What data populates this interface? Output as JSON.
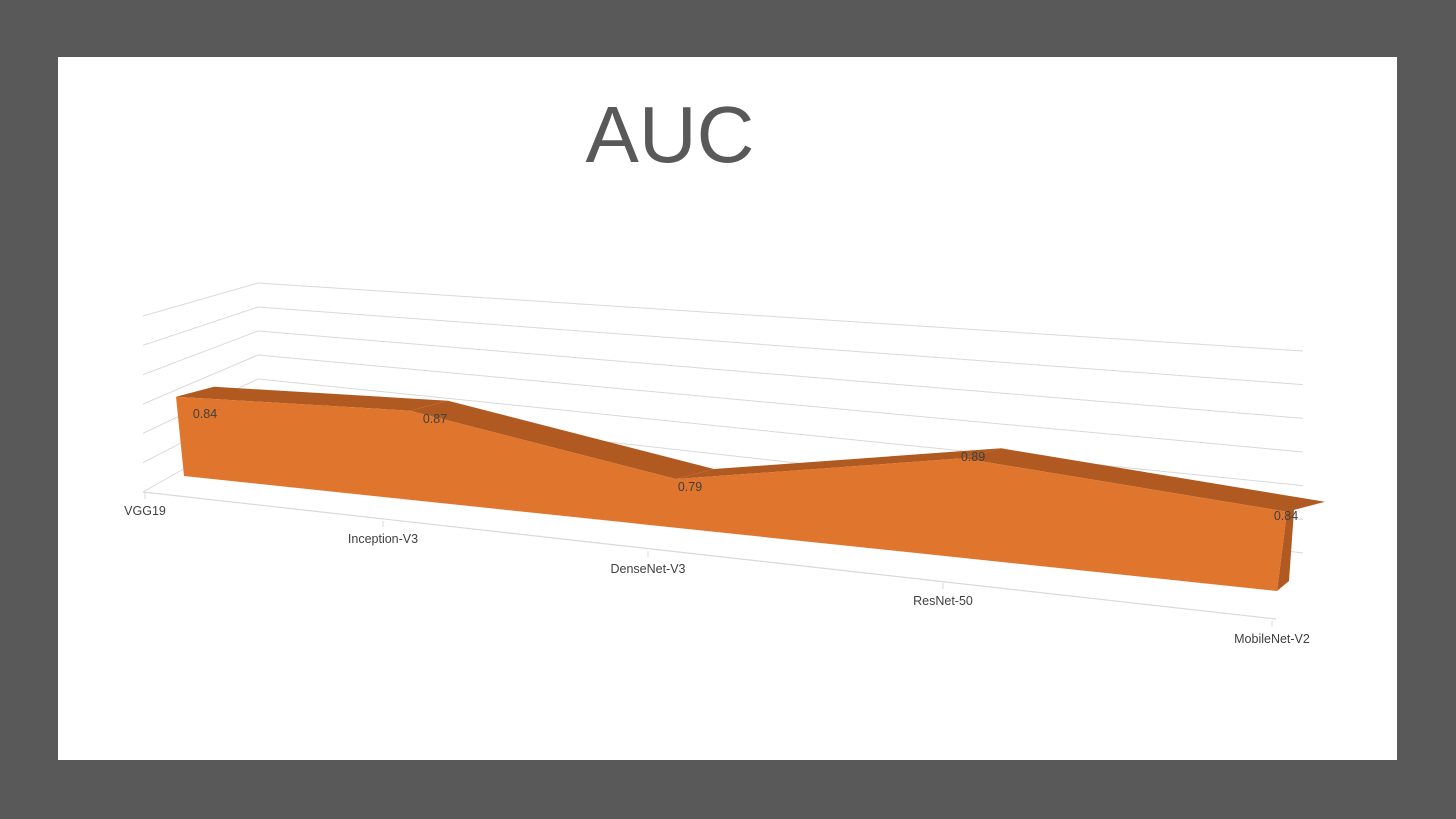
{
  "chart_data": {
    "type": "area",
    "variant": "3d-area",
    "title": "AUC",
    "categories": [
      "VGG19",
      "Inception-V3",
      "DenseNet-V3",
      "ResNet-50",
      "MobileNet-V2"
    ],
    "series": [
      {
        "values": [
          0.84,
          0.87,
          0.79,
          0.89,
          0.84
        ],
        "color": "#E0752D"
      }
    ],
    "data_labels": [
      "0.84",
      "0.87",
      "0.79",
      "0.89",
      "0.84"
    ],
    "grid": true,
    "legend": "none",
    "colors": {
      "front_face": "#E0752D",
      "top_face": "#B05A21",
      "gridline": "#D9D9D9",
      "text": "#404040",
      "title": "#595959",
      "frame": "#595959"
    }
  }
}
